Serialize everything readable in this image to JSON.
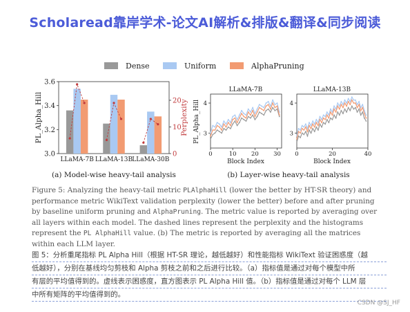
{
  "banner": {
    "text": "Scholaread靠岸学术-论文AI解析&排版&翻译&同步阅读"
  },
  "legend": {
    "items": [
      "Dense",
      "Uniform",
      "AlphaPruning"
    ]
  },
  "colors": {
    "dense": "#999999",
    "uniform": "#a9c9f2",
    "alphapruning": "#f29b72",
    "perplexity": "#c0393b",
    "banner": "#4b5bd8"
  },
  "chart_data": [
    {
      "type": "bar",
      "subcaption": "(a) Model-wise heavy-tail analysis",
      "ylabel": "PL_Alpha_Hill",
      "y2label": "Perplexity",
      "ylim": [
        3.0,
        3.6
      ],
      "yticks": [
        "3.0",
        "3.2",
        "3.4",
        "3.6"
      ],
      "y2lim": [
        0,
        27
      ],
      "y2ticks": [
        "0",
        "10",
        "20"
      ],
      "categories": [
        "LLaMA-7B",
        "LLaMA-13B",
        "LLaMA-30B"
      ],
      "series": [
        {
          "name": "Dense",
          "values": [
            3.36,
            3.25,
            3.07
          ]
        },
        {
          "name": "Uniform",
          "values": [
            3.54,
            3.49,
            3.35
          ]
        },
        {
          "name": "AlphaPruning",
          "values": [
            3.45,
            3.45,
            3.31
          ]
        }
      ],
      "perplexity": [
        {
          "name": "Dense",
          "values": [
            5.7,
            5.1,
            4.1
          ]
        },
        {
          "name": "Uniform",
          "values": [
            26.0,
            19.0,
            13.0
          ]
        },
        {
          "name": "AlphaPruning",
          "values": [
            19.0,
            13.0,
            11.0
          ]
        }
      ]
    },
    {
      "type": "line",
      "title": "LLaMA-7B",
      "xlabel": "Block Index",
      "ylabel": "PL_Alpha_Hill",
      "xlim": [
        0,
        32
      ],
      "ylim": [
        2.5,
        4.3
      ],
      "xticks": [
        "0",
        "10",
        "20",
        "30"
      ],
      "yticks": [
        "3",
        "4"
      ],
      "x": [
        0,
        1,
        2,
        3,
        4,
        5,
        6,
        7,
        8,
        9,
        10,
        11,
        12,
        13,
        14,
        15,
        16,
        17,
        18,
        19,
        20,
        21,
        22,
        23,
        24,
        25,
        26,
        27,
        28,
        29,
        30,
        31
      ],
      "series": [
        {
          "name": "Dense",
          "values": [
            2.8,
            2.95,
            3.0,
            3.1,
            3.05,
            3.0,
            3.15,
            3.1,
            3.2,
            3.15,
            3.3,
            3.4,
            3.25,
            3.35,
            3.5,
            3.45,
            3.4,
            3.55,
            3.5,
            3.6,
            3.45,
            3.55,
            3.7,
            3.65,
            3.6,
            3.75,
            3.8,
            3.7,
            3.85,
            3.75,
            3.8,
            3.55
          ]
        },
        {
          "name": "Uniform",
          "values": [
            3.0,
            3.25,
            3.2,
            3.35,
            3.3,
            3.2,
            3.4,
            3.3,
            3.45,
            3.35,
            3.55,
            3.6,
            3.45,
            3.6,
            3.75,
            3.65,
            3.6,
            3.8,
            3.7,
            3.85,
            3.65,
            3.8,
            3.95,
            3.9,
            3.85,
            4.0,
            4.05,
            3.9,
            4.1,
            3.95,
            4.0,
            3.7
          ]
        },
        {
          "name": "AlphaPruning",
          "values": [
            2.9,
            3.1,
            3.1,
            3.25,
            3.2,
            3.1,
            3.3,
            3.2,
            3.35,
            3.25,
            3.45,
            3.5,
            3.35,
            3.5,
            3.65,
            3.55,
            3.5,
            3.7,
            3.6,
            3.75,
            3.55,
            3.7,
            3.85,
            3.8,
            3.75,
            3.9,
            3.95,
            3.8,
            4.0,
            3.85,
            3.9,
            3.6
          ]
        }
      ]
    },
    {
      "type": "line",
      "title": "LLaMA-13B",
      "xlabel": "Block Index",
      "ylabel": "",
      "xlim": [
        0,
        40
      ],
      "ylim": [
        2.5,
        4.3
      ],
      "xticks": [
        "0",
        "20",
        "40"
      ],
      "yticks": [
        "3",
        "4"
      ],
      "x": [
        0,
        1,
        2,
        3,
        4,
        5,
        6,
        7,
        8,
        9,
        10,
        11,
        12,
        13,
        14,
        15,
        16,
        17,
        18,
        19,
        20,
        21,
        22,
        23,
        24,
        25,
        26,
        27,
        28,
        29,
        30,
        31,
        32,
        33,
        34,
        35,
        36,
        37,
        38,
        39
      ],
      "series": [
        {
          "name": "Dense",
          "values": [
            2.7,
            2.9,
            2.85,
            3.0,
            2.95,
            3.05,
            2.9,
            3.1,
            3.0,
            3.15,
            3.05,
            3.2,
            3.1,
            3.3,
            3.2,
            3.35,
            3.3,
            3.45,
            3.35,
            3.5,
            3.45,
            3.6,
            3.5,
            3.7,
            3.6,
            3.75,
            3.65,
            3.8,
            3.7,
            3.85,
            3.75,
            3.9,
            3.8,
            3.85,
            3.7,
            3.8,
            3.6,
            3.7,
            3.5,
            3.4
          ]
        },
        {
          "name": "Uniform",
          "values": [
            2.9,
            3.15,
            3.1,
            3.25,
            3.2,
            3.3,
            3.15,
            3.35,
            3.25,
            3.4,
            3.3,
            3.45,
            3.35,
            3.55,
            3.45,
            3.6,
            3.55,
            3.7,
            3.6,
            3.8,
            3.7,
            3.9,
            3.8,
            4.0,
            3.9,
            4.05,
            3.95,
            4.1,
            4.0,
            4.15,
            4.05,
            4.2,
            4.1,
            4.1,
            3.95,
            4.05,
            3.85,
            3.95,
            3.75,
            3.6
          ]
        },
        {
          "name": "AlphaPruning",
          "values": [
            2.8,
            3.05,
            3.0,
            3.15,
            3.1,
            3.2,
            3.05,
            3.25,
            3.15,
            3.3,
            3.2,
            3.35,
            3.25,
            3.45,
            3.35,
            3.5,
            3.45,
            3.6,
            3.5,
            3.7,
            3.6,
            3.8,
            3.7,
            3.9,
            3.8,
            3.95,
            3.85,
            4.0,
            3.9,
            4.05,
            3.95,
            4.1,
            4.0,
            4.0,
            3.85,
            3.95,
            3.75,
            3.85,
            3.65,
            3.5
          ]
        }
      ]
    }
  ],
  "subcaptions": {
    "a": "(a) Model-wise heavy-tail analysis",
    "b": "(b) Layer-wise heavy-tail analysis"
  },
  "caption": {
    "figure_label": "Figure 5:",
    "text_1": " Analyzing the heavy-tail metric ",
    "code_1": "PLAlphaHill",
    "text_2": " (lower the better by HT-SR theory) and performance metric WikiText validation perplexity (lower the better) before and after pruning by baseline uniform pruning and ",
    "code_2": "AlphaPruning",
    "text_3": ". The metric value is reported by averaging over all layers within each model. The dashed lines represent the perplexity and the histograms represent the ",
    "code_3": "PL AlphaHill",
    "text_4": " value. (b) The metric is reported by averaging all the matrices within each LLM layer."
  },
  "translation": {
    "lines": [
      "图 5：分析重尾指标 PL Alpha Hill（根据 HT-SR 理论，越低越好）和性能指标 WikiText 验证困惑度（越",
      "低越好），分别在基线均匀剪枝和 Alpha 剪枝之前和之后进行比较。（a）指标值是通过对每个模型中所",
      "有层的平均值得到的。虚线表示困惑度，直方图表示 PL Alpha Hill 值。（b）指标值是通过对每个 LLM 层",
      "中所有矩阵的平均值得到的。"
    ]
  },
  "watermark": "CSDN @SJ_HF"
}
